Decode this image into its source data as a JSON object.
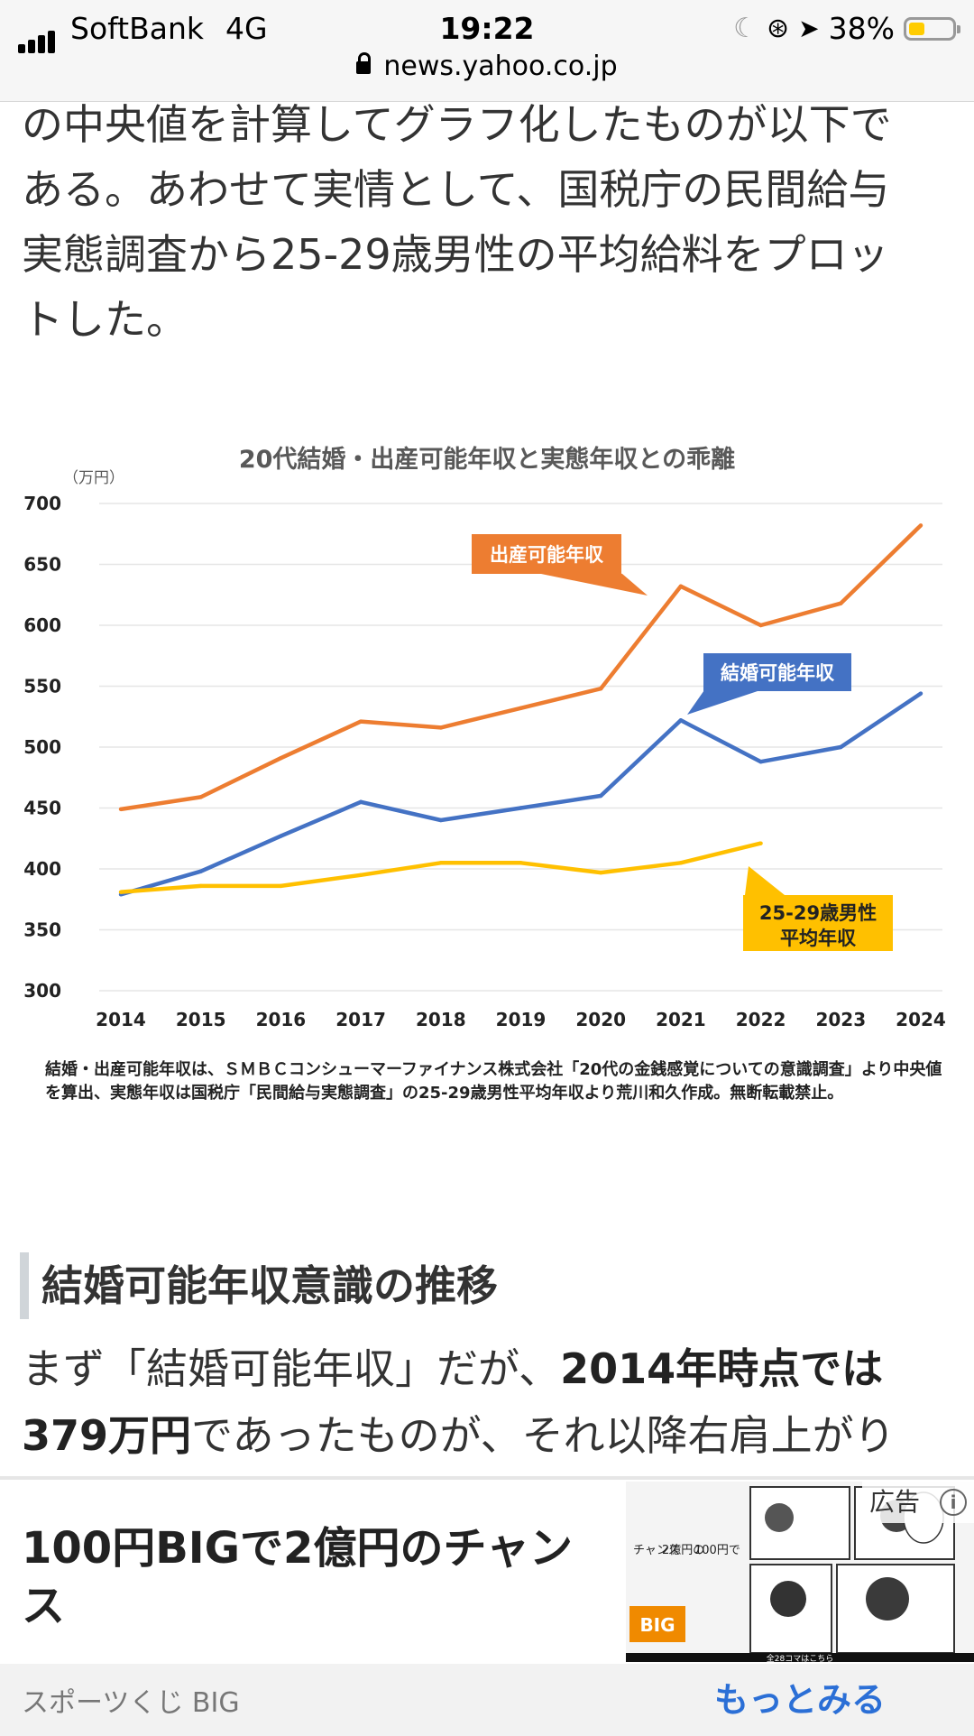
{
  "status_bar": {
    "carrier": "SoftBank",
    "network": "4G",
    "time": "19:22",
    "battery_percent": "38%",
    "battery_level": 0.38,
    "battery_color": "#ffcc00",
    "icons": [
      "moon-icon",
      "orientation-lock-icon",
      "location-arrow-icon"
    ]
  },
  "browser": {
    "url": "news.yahoo.co.jp"
  },
  "article": {
    "paragraph_lines": [
      "の中央値を計算してグラフ化したものが以下で",
      "ある。あわせて実情として、国税庁の民間給与",
      "実態調査から25-29歳男性の平均給料をプロッ",
      "トした。"
    ],
    "chart_caption": "結婚・出産可能年収は、ＳＭＢＣコンシューマーファイナンス株式会社「20代の金銭感覚についての意識調査」より中央値を算出、実態年収は国税庁「民間給与実態調査」の25-29歳男性平均年収より荒川和久作成。無断転載禁止。",
    "section_heading": "結婚可能年収意識の推移",
    "body_intro": "まず「結婚可能年収」だが、",
    "body_bold1": "2014年時点では",
    "body_bold2": "379万円",
    "body_rest": "であったものが、それ以降右肩上がり"
  },
  "chart_data": {
    "type": "line",
    "title": "20代結婚・出産可能年収と実態年収との乖離",
    "unit_label": "（万円）",
    "ylim": [
      300,
      700
    ],
    "yticks": [
      700,
      650,
      600,
      550,
      500,
      450,
      400,
      350,
      300
    ],
    "categories": [
      "2014",
      "2015",
      "2016",
      "2017",
      "2018",
      "2019",
      "2020",
      "2021",
      "2022",
      "2023",
      "2024"
    ],
    "grid": true,
    "series": [
      {
        "name": "出産可能年収",
        "color": "#ed7d31",
        "values": [
          449,
          459,
          491,
          521,
          516,
          532,
          548,
          632,
          600,
          618,
          682
        ]
      },
      {
        "name": "結婚可能年収",
        "color": "#4472c4",
        "values": [
          379,
          398,
          427,
          455,
          440,
          450,
          460,
          522,
          488,
          500,
          544
        ]
      },
      {
        "name": "25-29歳男性平均年収",
        "label_lines": [
          "25-29歳男性",
          "平均年収"
        ],
        "color": "#ffc000",
        "values": [
          381,
          386,
          386,
          395,
          405,
          405,
          397,
          405,
          421,
          null,
          null
        ]
      }
    ]
  },
  "ad": {
    "title": "100円BIGで2億円のチャンス",
    "label": "広告",
    "source": "スポーツくじ BIG",
    "more_button": "もっとみる",
    "image_lines": [
      "100円で",
      "2億円の",
      "チャンス"
    ],
    "image_logo": "BIG",
    "image_footer": "全28コマはこちら"
  }
}
